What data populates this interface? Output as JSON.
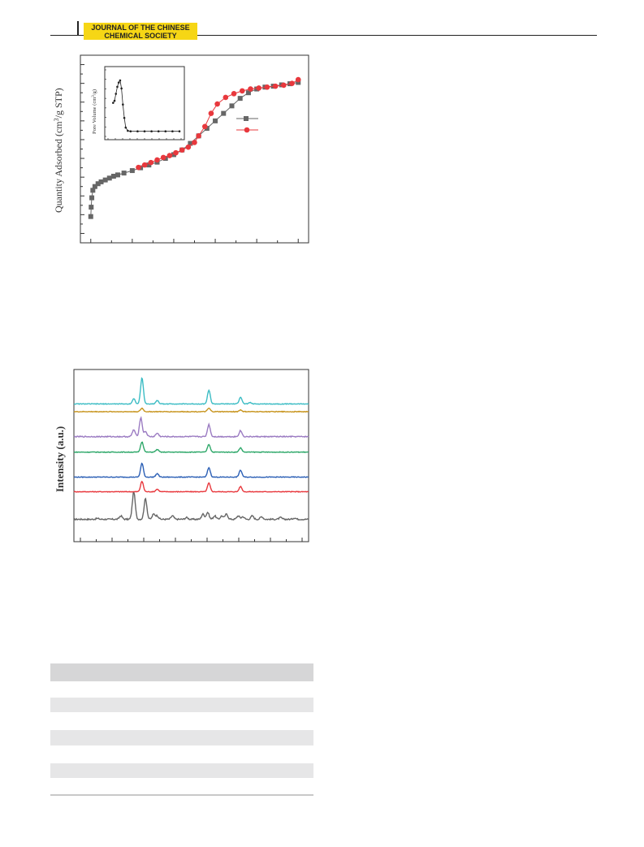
{
  "header": {
    "journal_line1": "JOURNAL OF THE CHINESE",
    "journal_line2": "CHEMICAL SOCIETY"
  },
  "figures": {
    "isotherm": {
      "ylabel_pre": "Quantity Adsorbed (cm",
      "ylabel_sup": "3",
      "ylabel_post": "/g STP)",
      "inset_ylabel_pre": "Pore Volume (cm",
      "inset_ylabel_sup": "3",
      "inset_ylabel_post": "/g)"
    },
    "xrd": {
      "ylabel": "Intensity (a.u.)"
    }
  },
  "colors": {
    "adsorption": "#666666",
    "desorption": "#e8383d",
    "xrd_series": [
      "#666666",
      "#e8383d",
      "#2b5fb5",
      "#2fa86a",
      "#9b7bc2",
      "#c8951f",
      "#3bbcc4"
    ],
    "header_accent": "#f6d615",
    "table_band": "#e6e6e7"
  },
  "chart_data": [
    {
      "type": "scatter",
      "title": "",
      "ylabel": "Quantity Adsorbed (cm3/g STP)",
      "xlabel": "",
      "xlim": [
        -0.05,
        1.05
      ],
      "ylim": [
        -5,
        95
      ],
      "legend": "right",
      "series": [
        {
          "marker": "square",
          "color": "#666666",
          "points": [
            [
              0.0,
              9
            ],
            [
              0.002,
              14
            ],
            [
              0.005,
              19
            ],
            [
              0.01,
              23
            ],
            [
              0.02,
              25
            ],
            [
              0.035,
              26.5
            ],
            [
              0.05,
              27.5
            ],
            [
              0.07,
              28.5
            ],
            [
              0.09,
              29.5
            ],
            [
              0.11,
              30.5
            ],
            [
              0.13,
              31.2
            ],
            [
              0.16,
              32.2
            ],
            [
              0.2,
              33.5
            ],
            [
              0.24,
              35
            ],
            [
              0.28,
              36.5
            ],
            [
              0.32,
              38
            ],
            [
              0.36,
              40
            ],
            [
              0.4,
              42
            ],
            [
              0.44,
              44.5
            ],
            [
              0.48,
              48
            ],
            [
              0.52,
              52
            ],
            [
              0.56,
              56
            ],
            [
              0.6,
              60
            ],
            [
              0.64,
              64
            ],
            [
              0.68,
              68
            ],
            [
              0.72,
              72
            ],
            [
              0.76,
              75
            ],
            [
              0.8,
              77
            ],
            [
              0.84,
              78
            ],
            [
              0.88,
              78.5
            ],
            [
              0.92,
              79.2
            ],
            [
              0.96,
              79.8
            ],
            [
              1.0,
              80.5
            ]
          ]
        },
        {
          "marker": "circle",
          "color": "#e8383d",
          "points": [
            [
              1.0,
              82
            ],
            [
              0.97,
              80
            ],
            [
              0.93,
              79
            ],
            [
              0.89,
              78.5
            ],
            [
              0.85,
              78
            ],
            [
              0.81,
              77.5
            ],
            [
              0.77,
              77
            ],
            [
              0.73,
              76
            ],
            [
              0.69,
              74.5
            ],
            [
              0.65,
              72.5
            ],
            [
              0.61,
              69
            ],
            [
              0.58,
              64
            ],
            [
              0.55,
              57
            ],
            [
              0.52,
              52
            ],
            [
              0.5,
              48.5
            ],
            [
              0.47,
              46
            ],
            [
              0.44,
              44.5
            ],
            [
              0.41,
              43
            ],
            [
              0.38,
              41.5
            ],
            [
              0.35,
              40.5
            ],
            [
              0.32,
              39.2
            ],
            [
              0.29,
              37.8
            ],
            [
              0.26,
              36.5
            ],
            [
              0.23,
              35.2
            ]
          ]
        }
      ],
      "inset": {
        "type": "line",
        "ylabel": "Pore Volume (cm3/g)",
        "points": [
          [
            0.05,
            0.58
          ],
          [
            0.07,
            0.62
          ],
          [
            0.09,
            0.75
          ],
          [
            0.11,
            0.88
          ],
          [
            0.13,
            0.96
          ],
          [
            0.15,
            1.0
          ],
          [
            0.17,
            0.85
          ],
          [
            0.19,
            0.55
          ],
          [
            0.21,
            0.3
          ],
          [
            0.23,
            0.12
          ],
          [
            0.26,
            0.06
          ],
          [
            0.3,
            0.05
          ],
          [
            0.4,
            0.05
          ],
          [
            0.5,
            0.05
          ],
          [
            0.6,
            0.05
          ],
          [
            0.7,
            0.05
          ],
          [
            0.8,
            0.05
          ],
          [
            0.9,
            0.05
          ],
          [
            1.0,
            0.05
          ]
        ]
      }
    },
    {
      "type": "line",
      "title": "",
      "ylabel": "Intensity (a.u.)",
      "xlabel": "",
      "xlim": [
        0,
        1
      ],
      "series": [
        {
          "color": "#666666",
          "baseline": 0.13,
          "noise": 0.004,
          "peaks": [
            [
              0.1,
              0.005
            ],
            [
              0.2,
              0.02
            ],
            [
              0.255,
              0.16
            ],
            [
              0.305,
              0.12
            ],
            [
              0.34,
              0.03
            ],
            [
              0.355,
              0.02
            ],
            [
              0.42,
              0.02
            ],
            [
              0.48,
              0.01
            ],
            [
              0.55,
              0.03
            ],
            [
              0.57,
              0.04
            ],
            [
              0.6,
              0.02
            ],
            [
              0.63,
              0.02
            ],
            [
              0.65,
              0.03
            ],
            [
              0.7,
              0.02
            ],
            [
              0.72,
              0.015
            ],
            [
              0.76,
              0.02
            ],
            [
              0.8,
              0.015
            ],
            [
              0.88,
              0.01
            ],
            [
              0.94,
              0.008
            ]
          ]
        },
        {
          "color": "#e8383d",
          "baseline": 0.29,
          "noise": 0.002,
          "peaks": [
            [
              0.29,
              0.06
            ],
            [
              0.355,
              0.015
            ],
            [
              0.575,
              0.05
            ],
            [
              0.71,
              0.03
            ]
          ]
        },
        {
          "color": "#2b5fb5",
          "baseline": 0.375,
          "noise": 0.002,
          "peaks": [
            [
              0.29,
              0.08
            ],
            [
              0.355,
              0.02
            ],
            [
              0.575,
              0.055
            ],
            [
              0.71,
              0.04
            ]
          ]
        },
        {
          "color": "#2fa86a",
          "baseline": 0.52,
          "noise": 0.002,
          "peaks": [
            [
              0.29,
              0.06
            ],
            [
              0.355,
              0.015
            ],
            [
              0.575,
              0.045
            ],
            [
              0.71,
              0.025
            ]
          ]
        },
        {
          "color": "#9b7bc2",
          "baseline": 0.61,
          "noise": 0.003,
          "peaks": [
            [
              0.255,
              0.04
            ],
            [
              0.285,
              0.11
            ],
            [
              0.305,
              0.03
            ],
            [
              0.355,
              0.02
            ],
            [
              0.575,
              0.07
            ],
            [
              0.71,
              0.035
            ]
          ]
        },
        {
          "color": "#c8951f",
          "baseline": 0.755,
          "noise": 0.002,
          "peaks": [
            [
              0.29,
              0.02
            ],
            [
              0.575,
              0.02
            ],
            [
              0.71,
              0.01
            ]
          ]
        },
        {
          "color": "#3bbcc4",
          "baseline": 0.8,
          "noise": 0.002,
          "peaks": [
            [
              0.255,
              0.03
            ],
            [
              0.29,
              0.15
            ],
            [
              0.355,
              0.02
            ],
            [
              0.575,
              0.08
            ],
            [
              0.71,
              0.04
            ],
            [
              0.75,
              0.008
            ]
          ]
        }
      ]
    }
  ]
}
